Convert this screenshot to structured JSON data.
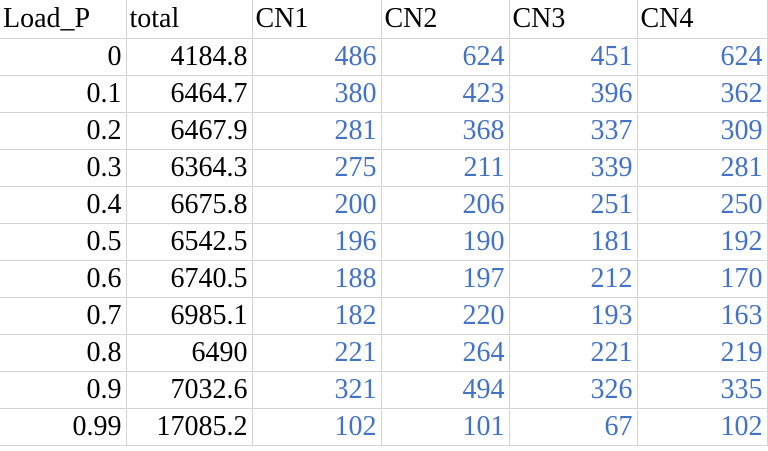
{
  "sheet": {
    "headers": [
      "Load_P",
      "total",
      "CN1",
      "CN2",
      "CN3",
      "CN4"
    ],
    "rows": [
      [
        "0",
        "4184.8",
        "486",
        "624",
        "451",
        "624"
      ],
      [
        "0.1",
        "6464.7",
        "380",
        "423",
        "396",
        "362"
      ],
      [
        "0.2",
        "6467.9",
        "281",
        "368",
        "337",
        "309"
      ],
      [
        "0.3",
        "6364.3",
        "275",
        "211",
        "339",
        "281"
      ],
      [
        "0.4",
        "6675.8",
        "200",
        "206",
        "251",
        "250"
      ],
      [
        "0.5",
        "6542.5",
        "196",
        "190",
        "181",
        "192"
      ],
      [
        "0.6",
        "6740.5",
        "188",
        "197",
        "212",
        "170"
      ],
      [
        "0.7",
        "6985.1",
        "182",
        "220",
        "193",
        "163"
      ],
      [
        "0.8",
        "6490",
        "221",
        "264",
        "221",
        "219"
      ],
      [
        "0.9",
        "7032.6",
        "321",
        "494",
        "326",
        "335"
      ],
      [
        "0.99",
        "17085.2",
        "102",
        "101",
        "67",
        "102"
      ]
    ],
    "colors": {
      "cn_values": "#4472c4",
      "plain_values": "#000000",
      "gridline": "#d4d4d4"
    }
  }
}
